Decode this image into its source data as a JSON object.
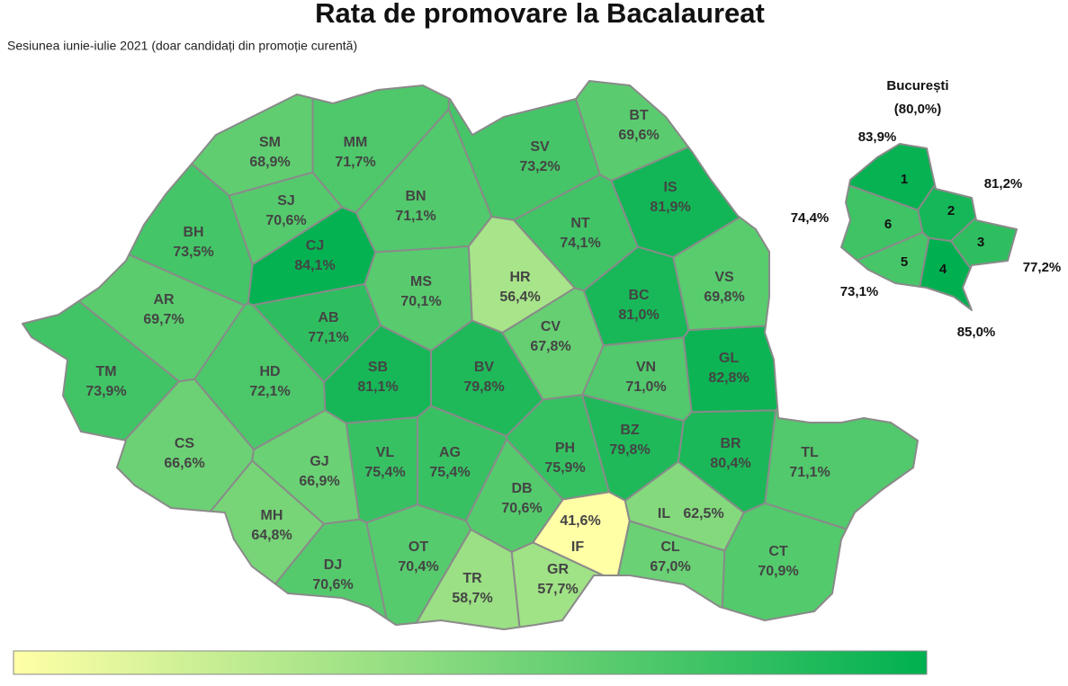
{
  "header": {
    "title": "Rata de promovare la Bacalaureat",
    "subtitle": "Sesiunea iunie-iulie 2021 (doar candidați din promoție curentă)"
  },
  "counties": [
    {
      "code": "SM",
      "value": 68.9,
      "label": "68,9%"
    },
    {
      "code": "MM",
      "value": 71.7,
      "label": "71,7%"
    },
    {
      "code": "BT",
      "value": 69.6,
      "label": "69,6%"
    },
    {
      "code": "SV",
      "value": 73.2,
      "label": "73,2%"
    },
    {
      "code": "BH",
      "value": 73.5,
      "label": "73,5%"
    },
    {
      "code": "SJ",
      "value": 70.6,
      "label": "70,6%"
    },
    {
      "code": "CJ",
      "value": 84.1,
      "label": "84,1%"
    },
    {
      "code": "BN",
      "value": 71.1,
      "label": "71,1%"
    },
    {
      "code": "IS",
      "value": 81.9,
      "label": "81,9%"
    },
    {
      "code": "NT",
      "value": 74.1,
      "label": "74,1%"
    },
    {
      "code": "HR",
      "value": 56.4,
      "label": "56,4%"
    },
    {
      "code": "MS",
      "value": 70.1,
      "label": "70,1%"
    },
    {
      "code": "BC",
      "value": 81.0,
      "label": "81,0%"
    },
    {
      "code": "VS",
      "value": 69.8,
      "label": "69,8%"
    },
    {
      "code": "AR",
      "value": 69.7,
      "label": "69,7%"
    },
    {
      "code": "AB",
      "value": 77.1,
      "label": "77,1%"
    },
    {
      "code": "TM",
      "value": 73.9,
      "label": "73,9%"
    },
    {
      "code": "HD",
      "value": 72.1,
      "label": "72,1%"
    },
    {
      "code": "SB",
      "value": 81.1,
      "label": "81,1%"
    },
    {
      "code": "BV",
      "value": 79.8,
      "label": "79,8%"
    },
    {
      "code": "CV",
      "value": 67.8,
      "label": "67,8%"
    },
    {
      "code": "VN",
      "value": 71.0,
      "label": "71,0%"
    },
    {
      "code": "GL",
      "value": 82.8,
      "label": "82,8%"
    },
    {
      "code": "CS",
      "value": 66.6,
      "label": "66,6%"
    },
    {
      "code": "GJ",
      "value": 66.9,
      "label": "66,9%"
    },
    {
      "code": "VL",
      "value": 75.4,
      "label": "75,4%"
    },
    {
      "code": "AG",
      "value": 75.4,
      "label": "75,4%"
    },
    {
      "code": "PH",
      "value": 75.9,
      "label": "75,9%"
    },
    {
      "code": "BZ",
      "value": 79.8,
      "label": "79,8%"
    },
    {
      "code": "BR",
      "value": 80.4,
      "label": "80,4%"
    },
    {
      "code": "TL",
      "value": 71.1,
      "label": "71,1%"
    },
    {
      "code": "DB",
      "value": 70.6,
      "label": "70,6%"
    },
    {
      "code": "IF",
      "value": 41.6,
      "label": "41,6%"
    },
    {
      "code": "IL",
      "value": 62.5,
      "label": "62,5%"
    },
    {
      "code": "MH",
      "value": 64.8,
      "label": "64,8%"
    },
    {
      "code": "DJ",
      "value": 70.6,
      "label": "70,6%"
    },
    {
      "code": "OT",
      "value": 70.4,
      "label": "70,4%"
    },
    {
      "code": "TR",
      "value": 58.7,
      "label": "58,7%"
    },
    {
      "code": "GR",
      "value": 57.7,
      "label": "57,7%"
    },
    {
      "code": "CL",
      "value": 67.0,
      "label": "67,0%"
    },
    {
      "code": "CT",
      "value": 70.9,
      "label": "70,9%"
    }
  ],
  "bucharest": {
    "title": "București",
    "total": "(80,0%)",
    "sectors": [
      {
        "number": 1,
        "value": 83.9,
        "label": "83,9%"
      },
      {
        "number": 2,
        "value": 81.2,
        "label": "81,2%"
      },
      {
        "number": 3,
        "value": 77.2,
        "label": "77,2%"
      },
      {
        "number": 4,
        "value": 85.0,
        "label": "85,0%"
      },
      {
        "number": 5,
        "value": 73.1,
        "label": "73,1%"
      },
      {
        "number": 6,
        "value": 74.4,
        "label": "74,4%"
      }
    ]
  }
}
